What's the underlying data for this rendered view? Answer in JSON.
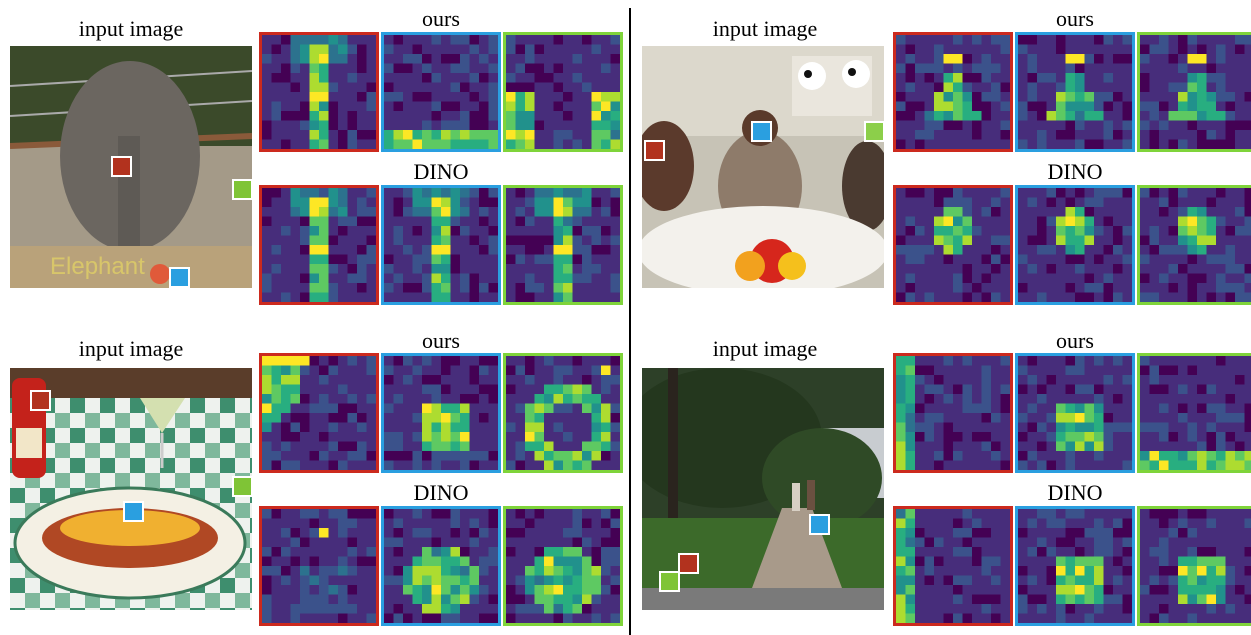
{
  "labels": {
    "input": "input image",
    "ours": "ours",
    "dino": "DINO"
  },
  "colors": {
    "red": "#cc2a1e",
    "blue": "#2a9fe0",
    "green": "#7fd43a",
    "divider": "#000000"
  },
  "colormap": [
    "#440154",
    "#472d7b",
    "#3b528b",
    "#2c728e",
    "#21918c",
    "#28ae80",
    "#5ec962",
    "#addc30",
    "#fde725"
  ],
  "panels": [
    {
      "id": "elephant",
      "scene": "elephant",
      "markers": {
        "red": "brown",
        "blue": "blue",
        "green": "green"
      },
      "ours": {
        "red": "stem",
        "blue": "bottom",
        "green": "corners"
      },
      "dino": {
        "red": "stem",
        "blue": "stem",
        "green": "stem"
      }
    },
    {
      "id": "lunch",
      "scene": "lunch",
      "markers": {
        "red": "brown",
        "blue": "blue",
        "green": "green"
      },
      "ours": {
        "red": "tri",
        "blue": "tri",
        "green": "tri"
      },
      "dino": {
        "red": "person",
        "blue": "person",
        "green": "person"
      }
    },
    {
      "id": "hotdog",
      "scene": "hotdog",
      "markers": {
        "red": "brown",
        "blue": "blue",
        "green": "green"
      },
      "ours": {
        "red": "diag",
        "blue": "blob",
        "green": "ring"
      },
      "dino": {
        "red": "dot",
        "blue": "oval",
        "green": "oval"
      }
    },
    {
      "id": "park",
      "scene": "park",
      "markers": {
        "red": "brown",
        "blue": "blue",
        "green": "green"
      },
      "ours": {
        "red": "edge",
        "blue": "blob",
        "green": "bottom"
      },
      "dino": {
        "red": "edge",
        "blue": "blob",
        "green": "blob"
      }
    }
  ]
}
